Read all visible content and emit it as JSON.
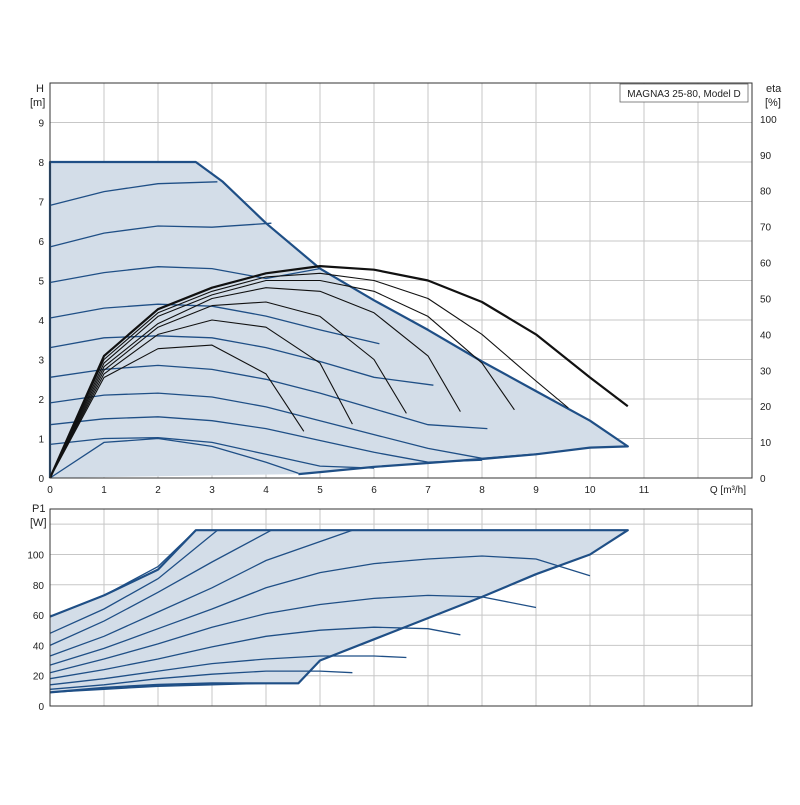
{
  "colors": {
    "grid": "#c7c7c7",
    "frame": "#333333",
    "fill": "#d3dde8",
    "curve": "#1f4f86",
    "eta": "#111111"
  },
  "chart_data": [
    {
      "type": "line",
      "title": "MAGNA3 25-80, Model D",
      "ylabel": "H",
      "yunit": "[m]",
      "ylabel_right": "eta",
      "yunit_right": "[%]",
      "xlabel": "Q [m³/h]",
      "xlim": [
        0,
        13
      ],
      "ylim": [
        0,
        10
      ],
      "ylim_right": [
        0,
        110
      ],
      "x_ticks": [
        0,
        1,
        2,
        3,
        4,
        5,
        6,
        7,
        8,
        9,
        10,
        11
      ],
      "y_ticks": [
        0,
        1,
        2,
        3,
        4,
        5,
        6,
        7,
        8,
        9
      ],
      "y_ticks_right": [
        0,
        10,
        20,
        30,
        40,
        50,
        60,
        70,
        80,
        90,
        100
      ],
      "grid": true,
      "operating_envelope": [
        [
          0,
          0
        ],
        [
          0,
          8
        ],
        [
          2.7,
          8
        ],
        [
          3.2,
          7.5
        ],
        [
          4.0,
          6.45
        ],
        [
          5.0,
          5.3
        ],
        [
          6.0,
          4.5
        ],
        [
          7.0,
          3.75
        ],
        [
          8.0,
          2.95
        ],
        [
          9.0,
          2.2
        ],
        [
          10.0,
          1.45
        ],
        [
          10.7,
          0.8
        ],
        [
          10.0,
          0.77
        ],
        [
          9.0,
          0.6
        ],
        [
          8.0,
          0.48
        ],
        [
          7.0,
          0.38
        ],
        [
          6.0,
          0.28
        ],
        [
          5.0,
          0.15
        ],
        [
          4.6,
          0.1
        ]
      ],
      "head_curves": [
        [
          [
            0,
            6.9
          ],
          [
            1,
            7.25
          ],
          [
            2,
            7.45
          ],
          [
            3.1,
            7.5
          ]
        ],
        [
          [
            0,
            5.85
          ],
          [
            1,
            6.2
          ],
          [
            2,
            6.38
          ],
          [
            3,
            6.35
          ],
          [
            4.1,
            6.45
          ]
        ],
        [
          [
            0,
            4.95
          ],
          [
            1,
            5.2
          ],
          [
            2,
            5.35
          ],
          [
            3,
            5.3
          ],
          [
            4,
            5.05
          ],
          [
            5.0,
            5.3
          ]
        ],
        [
          [
            0,
            4.05
          ],
          [
            1,
            4.3
          ],
          [
            2,
            4.4
          ],
          [
            3,
            4.35
          ],
          [
            4,
            4.1
          ],
          [
            5,
            3.75
          ],
          [
            6.1,
            3.4
          ]
        ],
        [
          [
            0,
            3.3
          ],
          [
            1,
            3.55
          ],
          [
            2,
            3.6
          ],
          [
            3,
            3.55
          ],
          [
            4,
            3.3
          ],
          [
            5,
            2.95
          ],
          [
            6,
            2.55
          ],
          [
            7.1,
            2.35
          ]
        ],
        [
          [
            0,
            2.55
          ],
          [
            1,
            2.75
          ],
          [
            2,
            2.85
          ],
          [
            3,
            2.75
          ],
          [
            4,
            2.5
          ],
          [
            5,
            2.15
          ],
          [
            6,
            1.75
          ],
          [
            7,
            1.35
          ],
          [
            8.1,
            1.25
          ]
        ],
        [
          [
            0,
            1.9
          ],
          [
            1,
            2.1
          ],
          [
            2,
            2.15
          ],
          [
            3,
            2.05
          ],
          [
            4,
            1.8
          ],
          [
            5,
            1.45
          ],
          [
            6,
            1.1
          ],
          [
            7,
            0.75
          ],
          [
            8,
            0.5
          ],
          [
            9.1,
            0.62
          ]
        ],
        [
          [
            0,
            1.35
          ],
          [
            1,
            1.5
          ],
          [
            2,
            1.55
          ],
          [
            3,
            1.45
          ],
          [
            4,
            1.25
          ],
          [
            5,
            0.95
          ],
          [
            6,
            0.65
          ],
          [
            7,
            0.4
          ],
          [
            8,
            0.45
          ]
        ],
        [
          [
            0,
            0.85
          ],
          [
            1,
            1.0
          ],
          [
            2,
            1.02
          ],
          [
            3,
            0.9
          ],
          [
            4,
            0.6
          ],
          [
            5,
            0.3
          ],
          [
            6,
            0.25
          ]
        ],
        [
          [
            0,
            0
          ],
          [
            1,
            0.9
          ],
          [
            2,
            1.0
          ],
          [
            3,
            0.8
          ],
          [
            4,
            0.4
          ],
          [
            4.6,
            0.12
          ]
        ]
      ],
      "eta_curves": [
        [
          [
            0,
            0
          ],
          [
            1,
            34
          ],
          [
            2,
            47
          ],
          [
            3,
            53
          ],
          [
            4,
            57
          ],
          [
            5,
            59
          ],
          [
            6,
            58
          ],
          [
            7,
            55
          ],
          [
            8,
            49
          ],
          [
            9,
            40
          ],
          [
            10,
            28
          ],
          [
            10.7,
            20
          ]
        ],
        [
          [
            0,
            0
          ],
          [
            1,
            33
          ],
          [
            2,
            46
          ],
          [
            3,
            52
          ],
          [
            4,
            56
          ],
          [
            5,
            57
          ],
          [
            6,
            55
          ],
          [
            7,
            50
          ],
          [
            8,
            40
          ],
          [
            9,
            27
          ],
          [
            9.6,
            19.5
          ]
        ],
        [
          [
            0,
            0
          ],
          [
            1,
            32
          ],
          [
            2,
            45
          ],
          [
            3,
            51
          ],
          [
            4,
            55
          ],
          [
            5,
            55
          ],
          [
            6,
            52
          ],
          [
            7,
            45
          ],
          [
            8,
            32
          ],
          [
            8.6,
            19
          ]
        ],
        [
          [
            0,
            0
          ],
          [
            1,
            31
          ],
          [
            2,
            43
          ],
          [
            3,
            50
          ],
          [
            4,
            53
          ],
          [
            5,
            52
          ],
          [
            6,
            46
          ],
          [
            7,
            34
          ],
          [
            7.6,
            18.5
          ]
        ],
        [
          [
            0,
            0
          ],
          [
            1,
            30
          ],
          [
            2,
            42
          ],
          [
            3,
            48
          ],
          [
            4,
            49
          ],
          [
            5,
            45
          ],
          [
            6,
            33
          ],
          [
            6.6,
            18
          ]
        ],
        [
          [
            0,
            0
          ],
          [
            1,
            29
          ],
          [
            2,
            40
          ],
          [
            3,
            44
          ],
          [
            4,
            42
          ],
          [
            5,
            32
          ],
          [
            5.6,
            15
          ]
        ],
        [
          [
            0,
            0
          ],
          [
            1,
            28
          ],
          [
            2,
            36
          ],
          [
            3,
            37
          ],
          [
            4,
            29
          ],
          [
            4.7,
            13
          ]
        ]
      ]
    },
    {
      "type": "line",
      "ylabel": "P1",
      "yunit": "[W]",
      "xlim": [
        0,
        13
      ],
      "ylim": [
        0,
        130
      ],
      "y_ticks": [
        0,
        20,
        40,
        60,
        80,
        100
      ],
      "grid": true,
      "operating_envelope": [
        [
          0,
          59
        ],
        [
          1,
          73
        ],
        [
          2,
          90
        ],
        [
          2.7,
          116
        ],
        [
          10.7,
          116
        ],
        [
          10.0,
          100
        ],
        [
          9.0,
          87
        ],
        [
          8.0,
          72
        ],
        [
          7.0,
          58
        ],
        [
          6.0,
          44
        ],
        [
          5.0,
          30
        ],
        [
          4.6,
          15
        ],
        [
          4.0,
          15
        ],
        [
          3.0,
          15
        ],
        [
          2.0,
          14
        ],
        [
          1.0,
          12
        ],
        [
          0,
          9
        ]
      ],
      "power_curves": [
        [
          [
            0,
            59
          ],
          [
            1,
            73
          ],
          [
            2,
            92
          ],
          [
            2.7,
            116
          ]
        ],
        [
          [
            0,
            48
          ],
          [
            1,
            64
          ],
          [
            2,
            84
          ],
          [
            3.1,
            116
          ]
        ],
        [
          [
            0,
            40
          ],
          [
            1,
            56
          ],
          [
            2,
            75
          ],
          [
            3,
            95
          ],
          [
            4.1,
            116
          ]
        ],
        [
          [
            0,
            33
          ],
          [
            1,
            46
          ],
          [
            2,
            62
          ],
          [
            3,
            78
          ],
          [
            4,
            96
          ],
          [
            5.6,
            116
          ]
        ],
        [
          [
            0,
            27
          ],
          [
            1,
            38
          ],
          [
            2,
            51
          ],
          [
            3,
            64
          ],
          [
            4,
            78
          ],
          [
            5,
            88
          ],
          [
            6,
            94
          ],
          [
            7,
            97
          ],
          [
            8,
            99
          ],
          [
            9,
            97
          ],
          [
            10,
            86
          ]
        ],
        [
          [
            0,
            22
          ],
          [
            1,
            31
          ],
          [
            2,
            41
          ],
          [
            3,
            52
          ],
          [
            4,
            61
          ],
          [
            5,
            67
          ],
          [
            6,
            71
          ],
          [
            7,
            73
          ],
          [
            8,
            72
          ],
          [
            9,
            65
          ]
        ],
        [
          [
            0,
            18
          ],
          [
            1,
            24
          ],
          [
            2,
            31
          ],
          [
            3,
            39
          ],
          [
            4,
            46
          ],
          [
            5,
            50
          ],
          [
            6,
            52
          ],
          [
            7,
            51
          ],
          [
            7.6,
            47
          ]
        ],
        [
          [
            0,
            14
          ],
          [
            1,
            18
          ],
          [
            2,
            23
          ],
          [
            3,
            28
          ],
          [
            4,
            31
          ],
          [
            5,
            33
          ],
          [
            6,
            33
          ],
          [
            6.6,
            32
          ]
        ],
        [
          [
            0,
            11
          ],
          [
            1,
            14
          ],
          [
            2,
            18
          ],
          [
            3,
            21
          ],
          [
            4,
            23
          ],
          [
            5,
            23
          ],
          [
            5.6,
            22
          ]
        ],
        [
          [
            0,
            9
          ],
          [
            1,
            11
          ],
          [
            2,
            13
          ],
          [
            3,
            14
          ],
          [
            4,
            15
          ],
          [
            4.6,
            15
          ]
        ]
      ]
    }
  ]
}
